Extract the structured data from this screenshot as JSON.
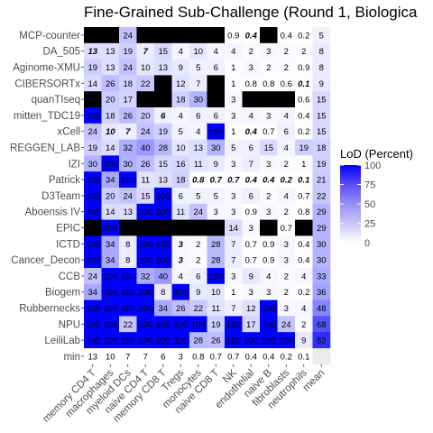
{
  "chart_data": {
    "type": "heatmap",
    "title": "Fine-Grained Sub-Challenge (Round 1, Biologica",
    "xlabel": "",
    "ylabel": "",
    "columns": [
      "memory CD4 T",
      "macrophages",
      "myeloid DCs",
      "naive CD4 T",
      "memory CD8 T",
      "Tregs",
      "monocytes",
      "naive CD8 T",
      "NK",
      "endothelial",
      "naive B",
      "fibroblasts",
      "neutrophils",
      "mean"
    ],
    "rows": [
      {
        "name": "MCP-counter",
        "values": [
          null,
          null,
          24,
          null,
          null,
          null,
          null,
          null,
          0.9,
          0.4,
          null,
          0.4,
          0.2,
          5
        ],
        "bold": [
          9
        ]
      },
      {
        "name": "DA_505",
        "values": [
          13,
          13,
          19,
          7,
          15,
          4,
          10,
          4,
          4,
          2,
          3,
          2,
          2,
          8
        ],
        "bold": [
          0,
          3
        ]
      },
      {
        "name": "Aginome-XMU",
        "values": [
          19,
          13,
          24,
          10,
          13,
          9,
          5,
          6,
          1,
          3,
          2,
          2,
          0.9,
          8
        ],
        "bold": []
      },
      {
        "name": "CIBERSORTx",
        "values": [
          14,
          26,
          18,
          22,
          null,
          12,
          7,
          null,
          1,
          0.8,
          0.8,
          0.6,
          0.1,
          9
        ],
        "bold": [
          12
        ]
      },
      {
        "name": "quanTIseq",
        "values": [
          null,
          20,
          17,
          null,
          null,
          18,
          30,
          null,
          3,
          null,
          null,
          null,
          0.6,
          15
        ],
        "bold": []
      },
      {
        "name": "mitten_TDC19",
        "values": [
          100,
          18,
          26,
          20,
          6,
          4,
          6,
          6,
          3,
          4,
          3,
          4,
          0.4,
          15
        ],
        "bold": [
          4
        ]
      },
      {
        "name": "xCell",
        "values": [
          24,
          10,
          7,
          24,
          19,
          5,
          4,
          100,
          1,
          0.4,
          0.7,
          6,
          0.2,
          15
        ],
        "bold": [
          1,
          2,
          9
        ]
      },
      {
        "name": "REGGEN_LAB",
        "values": [
          19,
          14,
          32,
          40,
          28,
          10,
          13,
          30,
          5,
          6,
          15,
          4,
          19,
          18
        ],
        "bold": []
      },
      {
        "name": "IZI",
        "values": [
          30,
          100,
          30,
          26,
          15,
          16,
          11,
          9,
          3,
          7,
          3,
          2,
          1,
          19
        ],
        "bold": []
      },
      {
        "name": "Patrick",
        "values": [
          100,
          34,
          100,
          11,
          13,
          18,
          0.8,
          0.7,
          0.7,
          0.4,
          0.4,
          0.2,
          0.1,
          21
        ],
        "bold": [
          6,
          7,
          8,
          9,
          10,
          11,
          12
        ]
      },
      {
        "name": "D3Team",
        "values": [
          100,
          20,
          24,
          15,
          100,
          6,
          5,
          5,
          3,
          6,
          2,
          4,
          0.7,
          22
        ],
        "bold": []
      },
      {
        "name": "Aboensis IV",
        "values": [
          100,
          14,
          13,
          100,
          100,
          11,
          24,
          3,
          3,
          0.9,
          3,
          2,
          0.8,
          29
        ],
        "bold": []
      },
      {
        "name": "EPIC",
        "values": [
          null,
          100,
          null,
          null,
          null,
          null,
          null,
          null,
          14,
          3,
          null,
          0.7,
          null,
          29
        ],
        "bold": []
      },
      {
        "name": "ICTD",
        "values": [
          100,
          34,
          8,
          100,
          100,
          3,
          2,
          28,
          7,
          0.7,
          0.9,
          3,
          0.4,
          30
        ],
        "bold": [
          5
        ]
      },
      {
        "name": "Cancer_Decon",
        "values": [
          100,
          34,
          8,
          100,
          100,
          3,
          2,
          28,
          7,
          0.7,
          0.9,
          3,
          0.4,
          30
        ],
        "bold": [
          5
        ]
      },
      {
        "name": "CCB",
        "values": [
          24,
          100,
          100,
          32,
          40,
          4,
          6,
          100,
          3,
          9,
          4,
          2,
          4,
          33
        ],
        "bold": []
      },
      {
        "name": "Biogem",
        "values": [
          34,
          100,
          100,
          100,
          8,
          100,
          9,
          10,
          1,
          3,
          3,
          2,
          0.2,
          36
        ],
        "bold": []
      },
      {
        "name": "Rubbernecks",
        "values": [
          100,
          100,
          100,
          100,
          34,
          26,
          22,
          11,
          7,
          12,
          100,
          3,
          4,
          48
        ],
        "bold": []
      },
      {
        "name": "NPU",
        "values": [
          100,
          100,
          22,
          100,
          100,
          100,
          100,
          19,
          100,
          17,
          100,
          24,
          2,
          68
        ],
        "bold": []
      },
      {
        "name": "LeiliLab",
        "values": [
          100,
          100,
          100,
          100,
          100,
          100,
          28,
          26,
          100,
          100,
          100,
          100,
          9,
          82
        ],
        "bold": []
      },
      {
        "name": "min",
        "values": [
          13,
          10,
          7,
          7,
          6,
          3,
          0.8,
          0.7,
          0.7,
          0.4,
          0.4,
          0.2,
          0.1,
          null
        ],
        "bold": []
      }
    ],
    "legend": {
      "title": "LoD (Percent)",
      "ticks": [
        100,
        75,
        50,
        25,
        0
      ],
      "range": [
        0,
        100
      ],
      "placement": "right"
    },
    "colors": {
      "low": "#ffffff",
      "high": "#0000ff",
      "missing": "#000000",
      "min_row": "#ebebeb"
    }
  }
}
